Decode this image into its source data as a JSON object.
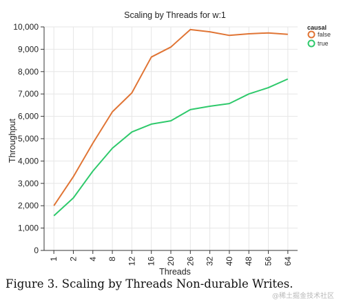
{
  "colors": {
    "false": "#e07434",
    "true": "#2ec96b",
    "grid": "#e6e6e6",
    "axis": "#333333"
  },
  "chart_data": {
    "type": "line",
    "title": "Scaling by Threads for w:1",
    "xlabel": "Threads",
    "ylabel": "Throughput",
    "categories": [
      "1",
      "2",
      "4",
      "8",
      "12",
      "16",
      "20",
      "26",
      "32",
      "40",
      "48",
      "56",
      "64"
    ],
    "y_ticks": [
      "0",
      "1,000",
      "2,000",
      "3,000",
      "4,000",
      "5,000",
      "6,000",
      "7,000",
      "8,000",
      "9,000",
      "10,000"
    ],
    "ylim": [
      0,
      10000
    ],
    "grid": true,
    "legend_title": "causal",
    "legend_position": "top-right",
    "series": [
      {
        "name": "false",
        "color": "#e07434",
        "values": [
          2000,
          3300,
          4800,
          6200,
          7050,
          8650,
          9100,
          9880,
          9780,
          9620,
          9690,
          9730,
          9670
        ]
      },
      {
        "name": "true",
        "color": "#2ec96b",
        "values": [
          1550,
          2350,
          3550,
          4570,
          5300,
          5650,
          5800,
          6300,
          6450,
          6570,
          7000,
          7280,
          7670
        ]
      }
    ]
  },
  "caption": "Figure 3. Scaling by Threads Non-durable Writes.",
  "watermark": "@稀土掘金技术社区"
}
